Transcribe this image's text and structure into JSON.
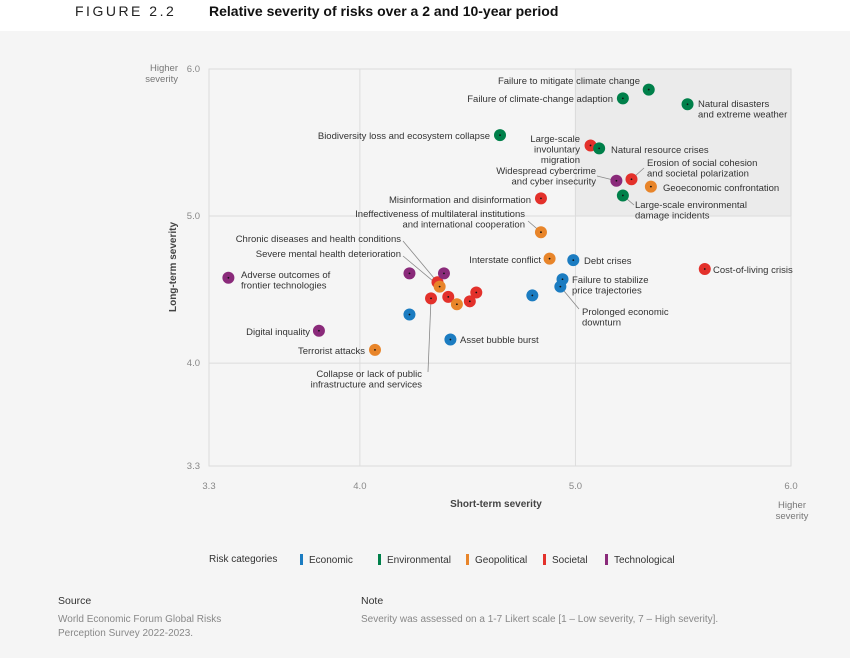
{
  "header": {
    "figure_label": "FIGURE 2.2",
    "title": "Relative severity of risks over a 2 and 10-year period"
  },
  "colors": {
    "Economic": "#1b7cc1",
    "Environmental": "#00804a",
    "Geopolitical": "#e8852a",
    "Societal": "#e3312b",
    "Technological": "#8a2a7a",
    "highlight_region": "#ebebeb"
  },
  "chart_data": {
    "type": "scatter",
    "xlabel": "Short-term severity",
    "ylabel": "Long-term severity",
    "xlim": [
      3.3,
      6.0
    ],
    "ylim": [
      3.3,
      6.0
    ],
    "x_ticks": [
      "3.3",
      "4.0",
      "5.0",
      "6.0"
    ],
    "y_ticks": [
      "3.3",
      "4.0",
      "5.0",
      "6.0"
    ],
    "x_end_note": "Higher severity",
    "y_end_note": "Higher severity",
    "grid": true,
    "highlight_region": {
      "x": [
        5.0,
        6.0
      ],
      "y": [
        5.0,
        6.0
      ]
    },
    "legend": {
      "title": "Risk categories",
      "placement": "bottom",
      "entries": [
        "Economic",
        "Environmental",
        "Geopolitical",
        "Societal",
        "Technological"
      ]
    },
    "points": [
      {
        "category": "Environmental",
        "x": 5.34,
        "y": 5.86,
        "label_lines": [
          "Failure to mitigate climate change"
        ]
      },
      {
        "category": "Environmental",
        "x": 5.22,
        "y": 5.8,
        "label_lines": [
          "Failure of climate-change adaption"
        ]
      },
      {
        "category": "Environmental",
        "x": 5.52,
        "y": 5.76,
        "label_lines": [
          "Natural disasters",
          "and extreme weather"
        ]
      },
      {
        "category": "Environmental",
        "x": 4.65,
        "y": 5.55,
        "label_lines": [
          "Biodiversity loss and ecosystem collapse"
        ]
      },
      {
        "category": "Societal",
        "x": 5.07,
        "y": 5.48,
        "label_lines": [
          "Large-scale",
          "involuntary",
          "migration"
        ]
      },
      {
        "category": "Environmental",
        "x": 5.11,
        "y": 5.46,
        "label_lines": [
          "Natural resource crises"
        ]
      },
      {
        "category": "Technological",
        "x": 5.19,
        "y": 5.24,
        "label_lines": [
          "Widespread cybercrime",
          "and cyber insecurity"
        ]
      },
      {
        "category": "Societal",
        "x": 5.26,
        "y": 5.25,
        "label_lines": [
          "Erosion of social cohesion",
          "and societal polarization"
        ]
      },
      {
        "category": "Geopolitical",
        "x": 5.35,
        "y": 5.2,
        "label_lines": [
          "Geoeconomic confrontation"
        ]
      },
      {
        "category": "Environmental",
        "x": 5.22,
        "y": 5.14,
        "label_lines": [
          "Large-scale environmental",
          "damage incidents"
        ]
      },
      {
        "category": "Societal",
        "x": 4.84,
        "y": 5.12,
        "label_lines": [
          "Misinformation and disinformation"
        ]
      },
      {
        "category": "Geopolitical",
        "x": 4.84,
        "y": 4.89,
        "label_lines": [
          "Ineffectiveness of multilateral institutions",
          "and international cooperation"
        ]
      },
      {
        "category": "Geopolitical",
        "x": 4.88,
        "y": 4.71,
        "label_lines": [
          "Interstate conflict"
        ]
      },
      {
        "category": "Economic",
        "x": 4.99,
        "y": 4.7,
        "label_lines": [
          "Debt crises"
        ]
      },
      {
        "category": "Societal",
        "x": 5.6,
        "y": 4.64,
        "label_lines": [
          "Cost-of-living crisis"
        ]
      },
      {
        "category": "Economic",
        "x": 4.94,
        "y": 4.57,
        "label_lines": [
          "Failure to stabilize",
          "price trajectories"
        ]
      },
      {
        "category": "Economic",
        "x": 4.93,
        "y": 4.52,
        "label_lines": [
          "Prolonged economic",
          "downturn"
        ]
      },
      {
        "category": "Technological",
        "x": 3.39,
        "y": 4.58,
        "label_lines": [
          "Adverse outcomes of",
          "frontier technologies"
        ]
      },
      {
        "category": "Technological",
        "x": 3.81,
        "y": 4.22,
        "label_lines": [
          "Digital inquality"
        ]
      },
      {
        "category": "Geopolitical",
        "x": 4.07,
        "y": 4.09,
        "label_lines": [
          "Terrorist attacks"
        ]
      },
      {
        "category": "Economic",
        "x": 4.42,
        "y": 4.16,
        "label_lines": [
          "Asset bubble burst"
        ]
      },
      {
        "category": "Societal",
        "x": 4.36,
        "y": 4.55,
        "label_lines": [
          "Chronic diseases and health conditions"
        ]
      },
      {
        "category": "Geopolitical",
        "x": 4.37,
        "y": 4.52,
        "label_lines": [
          "Severe mental health deterioration"
        ]
      },
      {
        "category": "Societal",
        "x": 4.33,
        "y": 4.44,
        "label_lines": [
          "Collapse or lack of public",
          "infrastructure and services"
        ]
      },
      {
        "category": "Technological",
        "x": 4.23,
        "y": 4.61
      },
      {
        "category": "Technological",
        "x": 4.39,
        "y": 4.61
      },
      {
        "category": "Societal",
        "x": 4.41,
        "y": 4.45
      },
      {
        "category": "Geopolitical",
        "x": 4.45,
        "y": 4.4
      },
      {
        "category": "Societal",
        "x": 4.51,
        "y": 4.42
      },
      {
        "category": "Societal",
        "x": 4.54,
        "y": 4.48
      },
      {
        "category": "Economic",
        "x": 4.23,
        "y": 4.33
      },
      {
        "category": "Economic",
        "x": 4.8,
        "y": 4.46
      }
    ]
  },
  "footer": {
    "source_heading": "Source",
    "source_lines": [
      "World Economic Forum Global Risks",
      "Perception Survey 2022-2023."
    ],
    "note_heading": "Note",
    "note_text": "Severity was assessed on a 1-7 Likert scale [1 – Low severity, 7 – High severity]."
  }
}
